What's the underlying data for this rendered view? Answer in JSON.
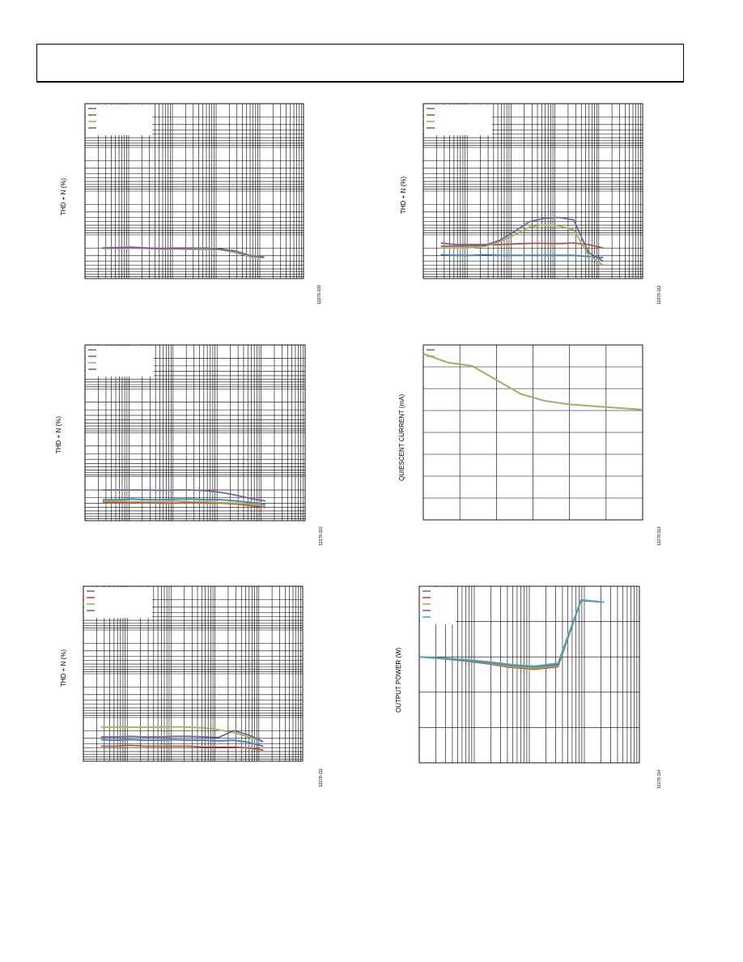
{
  "header": {},
  "figures": [
    {
      "id": "tl",
      "ylabel": "THD + N (%)",
      "figid": "12278-109"
    },
    {
      "id": "ml",
      "ylabel": "THD + N (%)",
      "figid": "12278-110"
    },
    {
      "id": "bl",
      "ylabel": "THD + N (%)",
      "figid": "12278-111"
    },
    {
      "id": "tr",
      "ylabel": "THD + N (%)",
      "figid": "12278-112"
    },
    {
      "id": "mr",
      "ylabel": "QUIESCENT CURRENT (mA)",
      "figid": "12278-113"
    },
    {
      "id": "br",
      "ylabel": "OUTPUT POWER (W)",
      "figid": "12278-114"
    }
  ],
  "colors": {
    "blue": "#4a7ebb",
    "red": "#be4b48",
    "green": "#98b954",
    "purple": "#7d60a0",
    "cyan": "#46aac5",
    "grid": "#000000"
  },
  "chart_data": [
    {
      "type": "line",
      "grid": true,
      "x_scale": "log",
      "y_scale": "log",
      "legend": "top-left",
      "series": [
        {
          "color": "blue",
          "values": [
            0.05,
            0.05,
            0.05,
            0.05,
            0.048,
            0.048,
            0.047,
            0.047,
            0.046,
            0.04,
            0.032,
            0.03
          ]
        },
        {
          "color": "red",
          "values": [
            0.05,
            0.051,
            0.052,
            0.05,
            0.049,
            0.05,
            0.05,
            0.049,
            0.048,
            0.042,
            0.033,
            0.03
          ]
        },
        {
          "color": "green",
          "values": [
            0.049,
            0.05,
            0.05,
            0.049,
            0.048,
            0.049,
            0.048,
            0.048,
            0.046,
            0.041,
            0.032,
            0.03
          ]
        },
        {
          "color": "purple",
          "values": [
            0.05,
            0.05,
            0.051,
            0.05,
            0.048,
            0.049,
            0.049,
            0.05,
            0.047,
            0.043,
            0.034,
            0.031
          ]
        }
      ]
    },
    {
      "type": "line",
      "grid": true,
      "x_scale": "log",
      "y_scale": "log",
      "legend": "top-left",
      "series": [
        {
          "color": "blue",
          "values": [
            0.03,
            0.03,
            0.031,
            0.03,
            0.03,
            0.031,
            0.031,
            0.03,
            0.03,
            0.028,
            0.026,
            0.024
          ]
        },
        {
          "color": "red",
          "values": [
            0.026,
            0.026,
            0.025,
            0.026,
            0.025,
            0.025,
            0.026,
            0.025,
            0.025,
            0.024,
            0.022,
            0.02
          ]
        },
        {
          "color": "green",
          "values": [
            0.028,
            0.028,
            0.027,
            0.027,
            0.027,
            0.028,
            0.027,
            0.027,
            0.026,
            0.025,
            0.024,
            0.022
          ]
        },
        {
          "color": "purple",
          "values": [
            0.05,
            0.05,
            0.05,
            0.05,
            0.049,
            0.05,
            0.05,
            0.048,
            0.044,
            0.038,
            0.032,
            0.028
          ]
        }
      ]
    },
    {
      "type": "line",
      "grid": true,
      "x_scale": "log",
      "y_scale": "log",
      "legend": "top-left",
      "series": [
        {
          "color": "blue",
          "values": [
            0.031,
            0.03,
            0.031,
            0.03,
            0.03,
            0.031,
            0.03,
            0.03,
            0.029,
            0.03,
            0.027,
            0.022
          ]
        },
        {
          "color": "red",
          "values": [
            0.022,
            0.022,
            0.023,
            0.022,
            0.022,
            0.022,
            0.022,
            0.021,
            0.021,
            0.021,
            0.02,
            0.018
          ]
        },
        {
          "color": "green",
          "values": [
            0.06,
            0.06,
            0.06,
            0.06,
            0.06,
            0.061,
            0.06,
            0.058,
            0.052,
            0.045,
            0.036,
            0.028
          ]
        },
        {
          "color": "purple",
          "values": [
            0.036,
            0.036,
            0.037,
            0.036,
            0.036,
            0.037,
            0.037,
            0.036,
            0.035,
            0.05,
            0.04,
            0.028
          ]
        }
      ]
    },
    {
      "type": "line",
      "grid": true,
      "x_scale": "log",
      "y_scale": "log",
      "legend": "top-left",
      "series": [
        {
          "color": "blue",
          "values": [
            0.035,
            0.034,
            0.034,
            0.035,
            0.034,
            0.034,
            0.034,
            0.034,
            0.034,
            0.034,
            0.032,
            0.03
          ]
        },
        {
          "color": "red",
          "values": [
            0.065,
            0.06,
            0.06,
            0.06,
            0.06,
            0.062,
            0.064,
            0.064,
            0.063,
            0.065,
            0.06,
            0.05
          ]
        },
        {
          "color": "green",
          "values": [
            0.05,
            0.05,
            0.051,
            0.055,
            0.07,
            0.1,
            0.15,
            0.17,
            0.16,
            0.13,
            0.035,
            0.02
          ]
        },
        {
          "color": "purple",
          "values": [
            0.055,
            0.055,
            0.056,
            0.058,
            0.075,
            0.12,
            0.2,
            0.24,
            0.25,
            0.22,
            0.04,
            0.025
          ]
        }
      ]
    },
    {
      "type": "line",
      "grid": true,
      "legend": "top-left",
      "series": [
        {
          "color": "blue",
          "values": [
            0.95,
            0.9,
            0.88,
            0.8,
            0.72,
            0.68,
            0.66,
            0.65,
            0.64,
            0.63
          ]
        },
        {
          "color": "green",
          "values": [
            0.95,
            0.9,
            0.88,
            0.8,
            0.72,
            0.68,
            0.66,
            0.65,
            0.64,
            0.63
          ]
        }
      ]
    },
    {
      "type": "line",
      "grid": true,
      "x_scale": "log",
      "legend": "top-left",
      "series": [
        {
          "color": "blue",
          "values": [
            3.0,
            2.95,
            2.9,
            2.85,
            2.75,
            2.7,
            2.8,
            4.6,
            4.55
          ]
        },
        {
          "color": "red",
          "values": [
            3.0,
            2.95,
            2.88,
            2.8,
            2.7,
            2.65,
            2.72,
            4.6,
            4.55
          ]
        },
        {
          "color": "green",
          "values": [
            3.0,
            2.95,
            2.89,
            2.82,
            2.72,
            2.68,
            2.75,
            4.6,
            4.55
          ]
        },
        {
          "color": "purple",
          "values": [
            3.0,
            2.96,
            2.9,
            2.84,
            2.76,
            2.72,
            2.78,
            4.6,
            4.55
          ]
        },
        {
          "color": "cyan",
          "values": [
            3.0,
            2.97,
            2.92,
            2.86,
            2.78,
            2.74,
            2.82,
            4.62,
            4.55
          ]
        }
      ]
    }
  ]
}
